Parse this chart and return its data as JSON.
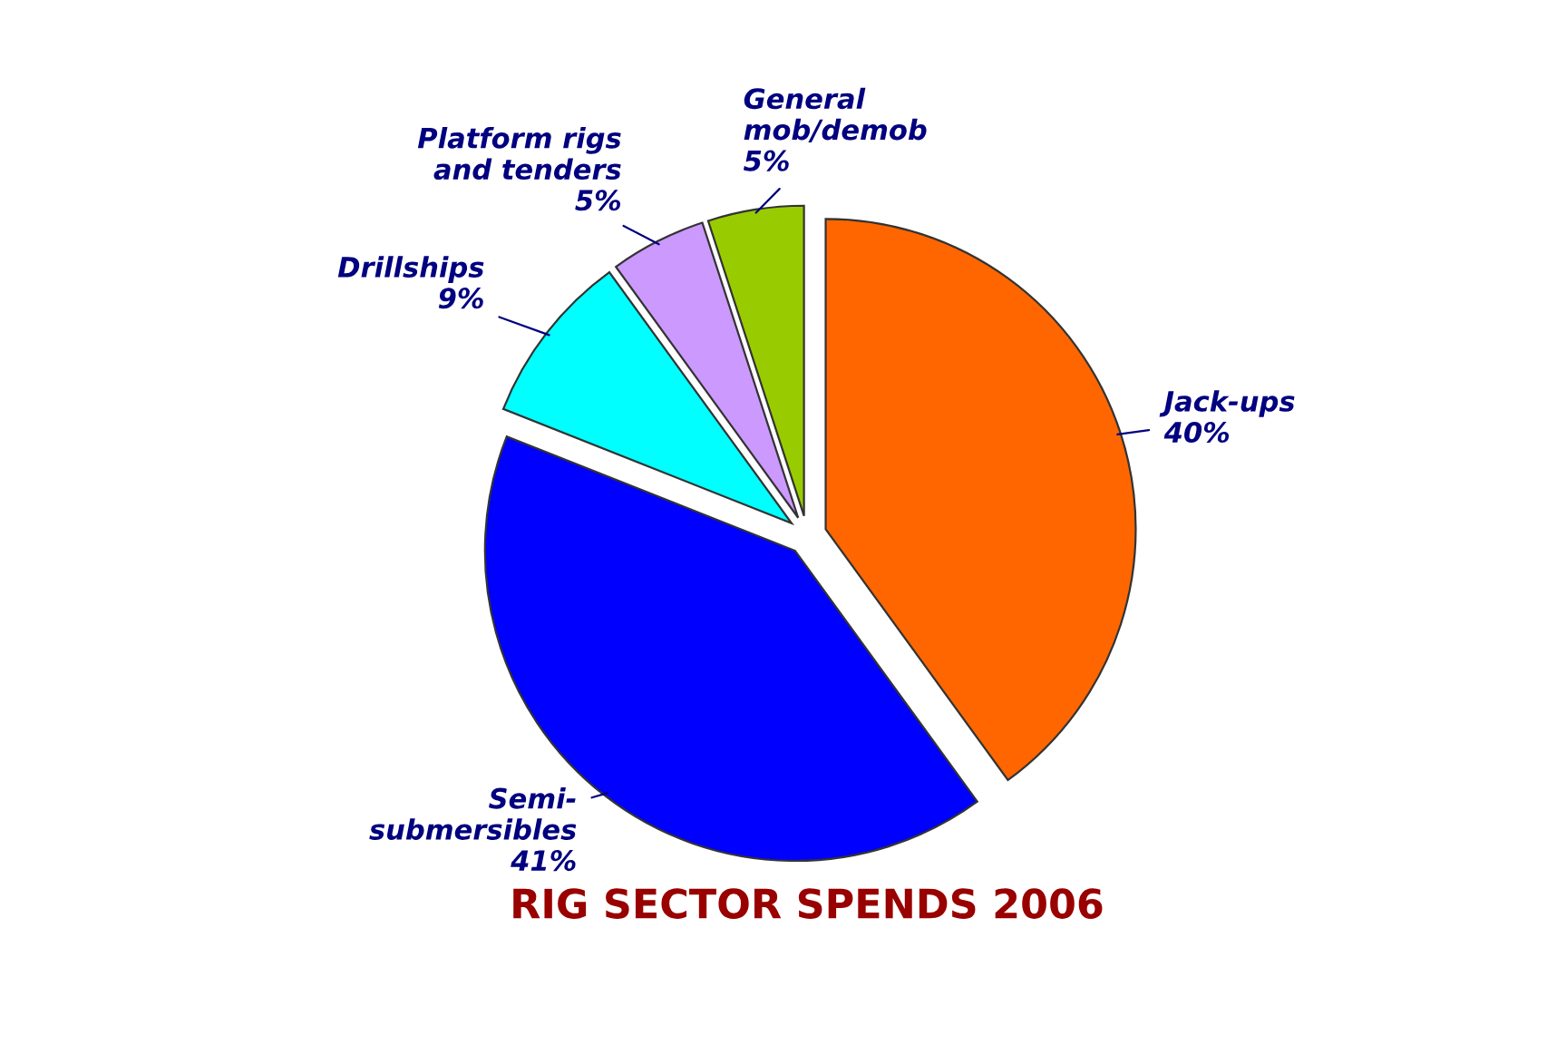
{
  "chart_data": {
    "type": "pie",
    "title": "RIG SECTOR SPENDS 2006",
    "categories": [
      "Jack-ups",
      "Semi-\nsubmersibles",
      "Drillships",
      "Platform rigs\nand tenders",
      "General\nmob/demob"
    ],
    "values": [
      40,
      41,
      9,
      5,
      5
    ],
    "value_labels": [
      "40%",
      "41%",
      "9%",
      "5%",
      "5%"
    ],
    "colors": [
      "#ff6600",
      "#0000ff",
      "#00ffff",
      "#cc99ff",
      "#99cc00"
    ]
  }
}
